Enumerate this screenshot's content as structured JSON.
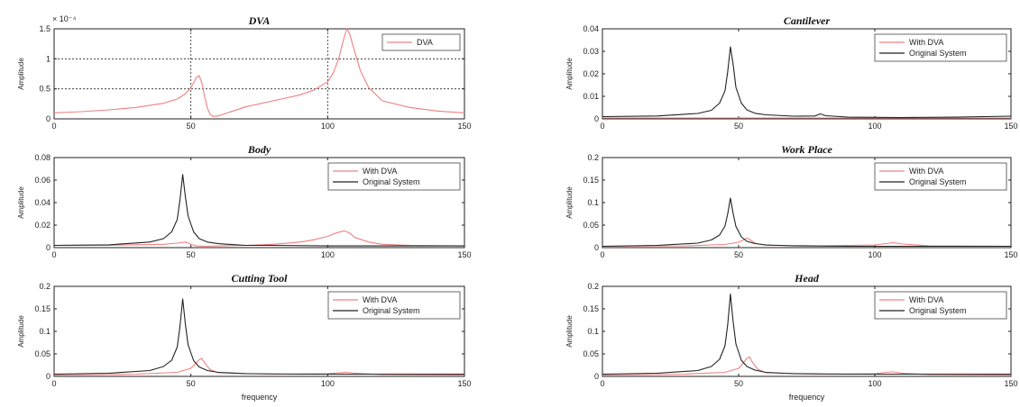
{
  "chart_data": [
    {
      "type": "line",
      "title": "DVA",
      "ylabel": "Amplitude",
      "xlabel": "",
      "xlim": [
        0,
        150
      ],
      "ylim": [
        0,
        1.5
      ],
      "xticks": [
        "0",
        "50",
        "100",
        "150"
      ],
      "yticks": [
        "0",
        "0.5",
        "1",
        "1.5"
      ],
      "multiplier": "× 10⁻⁴",
      "grid": "dashed lines at x=50, x=100, y=0.5, y=1",
      "legend": "top-right",
      "series": [
        {
          "name": "DVA",
          "color": "#f08080",
          "x": [
            0,
            10,
            20,
            30,
            40,
            45,
            48,
            50,
            51,
            52,
            53,
            54,
            55,
            56,
            57,
            58,
            60,
            70,
            80,
            90,
            95,
            100,
            102,
            104,
            106,
            107,
            108,
            110,
            112,
            115,
            120,
            130,
            140,
            150
          ],
          "y": [
            0.1,
            0.12,
            0.15,
            0.19,
            0.26,
            0.33,
            0.42,
            0.52,
            0.6,
            0.69,
            0.72,
            0.6,
            0.38,
            0.18,
            0.08,
            0.04,
            0.05,
            0.2,
            0.3,
            0.4,
            0.48,
            0.62,
            0.76,
            1.0,
            1.35,
            1.5,
            1.42,
            1.1,
            0.8,
            0.52,
            0.3,
            0.19,
            0.13,
            0.1
          ]
        }
      ]
    },
    {
      "type": "line",
      "title": "Cantilever",
      "ylabel": "Amplitude",
      "xlabel": "",
      "xlim": [
        0,
        150
      ],
      "ylim": [
        0,
        0.04
      ],
      "xticks": [
        "0",
        "50",
        "100",
        "150"
      ],
      "yticks": [
        "0",
        "0.01",
        "0.02",
        "0.03",
        "0.04"
      ],
      "legend": "top-right",
      "series": [
        {
          "name": "With DVA",
          "color": "#f08080",
          "x": [
            0,
            150
          ],
          "y": [
            0.0004,
            0.0004
          ]
        },
        {
          "name": "Original System",
          "color": "#222222",
          "x": [
            0,
            20,
            35,
            40,
            43,
            45,
            46,
            47,
            48,
            49,
            51,
            53,
            56,
            60,
            70,
            78,
            80,
            82,
            90,
            110,
            130,
            150
          ],
          "y": [
            0.001,
            0.0013,
            0.0024,
            0.0038,
            0.007,
            0.0125,
            0.021,
            0.032,
            0.024,
            0.014,
            0.007,
            0.004,
            0.0025,
            0.0018,
            0.0012,
            0.0013,
            0.0022,
            0.0014,
            0.0008,
            0.0006,
            0.0008,
            0.0012
          ]
        }
      ]
    },
    {
      "type": "line",
      "title": "Body",
      "ylabel": "Amplitude",
      "xlabel": "",
      "xlim": [
        0,
        150
      ],
      "ylim": [
        0,
        0.08
      ],
      "xticks": [
        "0",
        "50",
        "100",
        "150"
      ],
      "yticks": [
        "0",
        "0.02",
        "0.04",
        "0.06",
        "0.08"
      ],
      "legend": "top-right",
      "series": [
        {
          "name": "With DVA",
          "color": "#f08080",
          "x": [
            0,
            20,
            40,
            45,
            48,
            50,
            52,
            55,
            60,
            70,
            80,
            90,
            95,
            100,
            103,
            106,
            108,
            110,
            115,
            120,
            130,
            150
          ],
          "y": [
            0.002,
            0.0022,
            0.003,
            0.004,
            0.005,
            0.003,
            0.0015,
            0.0012,
            0.0015,
            0.002,
            0.003,
            0.005,
            0.007,
            0.01,
            0.013,
            0.015,
            0.013,
            0.009,
            0.005,
            0.003,
            0.002,
            0.0015
          ]
        },
        {
          "name": "Original System",
          "color": "#222222",
          "x": [
            0,
            20,
            35,
            40,
            43,
            45,
            46,
            47,
            48,
            49,
            51,
            53,
            56,
            60,
            70,
            80,
            100,
            120,
            150
          ],
          "y": [
            0.002,
            0.0025,
            0.005,
            0.008,
            0.014,
            0.025,
            0.042,
            0.065,
            0.045,
            0.028,
            0.014,
            0.008,
            0.005,
            0.0035,
            0.002,
            0.002,
            0.0015,
            0.0015,
            0.0015
          ]
        }
      ]
    },
    {
      "type": "line",
      "title": "Work Place",
      "ylabel": "Amplitude",
      "xlabel": "",
      "xlim": [
        0,
        150
      ],
      "ylim": [
        0,
        0.2
      ],
      "xticks": [
        "0",
        "50",
        "100",
        "150"
      ],
      "yticks": [
        "0",
        "0.05",
        "0.1",
        "0.15",
        "0.2"
      ],
      "legend": "top-right",
      "series": [
        {
          "name": "With DVA",
          "color": "#f08080",
          "x": [
            0,
            30,
            45,
            50,
            52,
            53,
            54,
            56,
            60,
            80,
            100,
            104,
            107,
            110,
            120,
            150
          ],
          "y": [
            0.003,
            0.004,
            0.007,
            0.012,
            0.018,
            0.021,
            0.018,
            0.01,
            0.005,
            0.004,
            0.006,
            0.009,
            0.011,
            0.008,
            0.004,
            0.003
          ]
        },
        {
          "name": "Original System",
          "color": "#222222",
          "x": [
            0,
            20,
            35,
            40,
            43,
            45,
            46,
            47,
            48,
            49,
            51,
            53,
            56,
            60,
            70,
            90,
            120,
            150
          ],
          "y": [
            0.003,
            0.005,
            0.01,
            0.017,
            0.028,
            0.048,
            0.075,
            0.11,
            0.075,
            0.047,
            0.024,
            0.014,
            0.009,
            0.006,
            0.004,
            0.003,
            0.003,
            0.003
          ]
        }
      ]
    },
    {
      "type": "line",
      "title": "Cutting Tool",
      "ylabel": "Amplitude",
      "xlabel": "frequency",
      "xlim": [
        0,
        150
      ],
      "ylim": [
        0,
        0.2
      ],
      "xticks": [
        "0",
        "50",
        "100",
        "150"
      ],
      "yticks": [
        "0",
        "0.05",
        "0.1",
        "0.15",
        "0.2"
      ],
      "legend": "top-right",
      "series": [
        {
          "name": "With DVA",
          "color": "#f08080",
          "x": [
            0,
            30,
            45,
            50,
            52,
            53,
            54,
            55,
            57,
            60,
            80,
            100,
            104,
            107,
            110,
            120,
            150
          ],
          "y": [
            0.003,
            0.005,
            0.009,
            0.018,
            0.03,
            0.037,
            0.04,
            0.03,
            0.015,
            0.008,
            0.005,
            0.006,
            0.008,
            0.009,
            0.007,
            0.004,
            0.003
          ]
        },
        {
          "name": "Original System",
          "color": "#222222",
          "x": [
            0,
            20,
            35,
            40,
            43,
            45,
            46,
            47,
            48,
            49,
            51,
            53,
            56,
            60,
            70,
            90,
            120,
            150
          ],
          "y": [
            0.005,
            0.007,
            0.013,
            0.022,
            0.036,
            0.065,
            0.11,
            0.172,
            0.115,
            0.07,
            0.035,
            0.021,
            0.013,
            0.009,
            0.006,
            0.005,
            0.005,
            0.005
          ]
        }
      ]
    },
    {
      "type": "line",
      "title": "Head",
      "ylabel": "Amplitude",
      "xlabel": "frequency",
      "xlim": [
        0,
        150
      ],
      "ylim": [
        0,
        0.2
      ],
      "xticks": [
        "0",
        "50",
        "100",
        "150"
      ],
      "yticks": [
        "0",
        "0.05",
        "0.1",
        "0.15",
        "0.2"
      ],
      "legend": "top-right",
      "series": [
        {
          "name": "With DVA",
          "color": "#f08080",
          "x": [
            0,
            30,
            45,
            50,
            52,
            53,
            54,
            55,
            57,
            60,
            80,
            100,
            104,
            107,
            110,
            120,
            150
          ],
          "y": [
            0.003,
            0.005,
            0.009,
            0.018,
            0.032,
            0.04,
            0.043,
            0.032,
            0.016,
            0.008,
            0.005,
            0.006,
            0.009,
            0.01,
            0.007,
            0.004,
            0.003
          ]
        },
        {
          "name": "Original System",
          "color": "#222222",
          "x": [
            0,
            20,
            35,
            40,
            43,
            45,
            46,
            47,
            48,
            49,
            51,
            53,
            56,
            60,
            70,
            90,
            120,
            150
          ],
          "y": [
            0.005,
            0.007,
            0.013,
            0.022,
            0.038,
            0.068,
            0.115,
            0.183,
            0.12,
            0.072,
            0.036,
            0.022,
            0.014,
            0.009,
            0.006,
            0.005,
            0.005,
            0.005
          ]
        }
      ]
    }
  ]
}
